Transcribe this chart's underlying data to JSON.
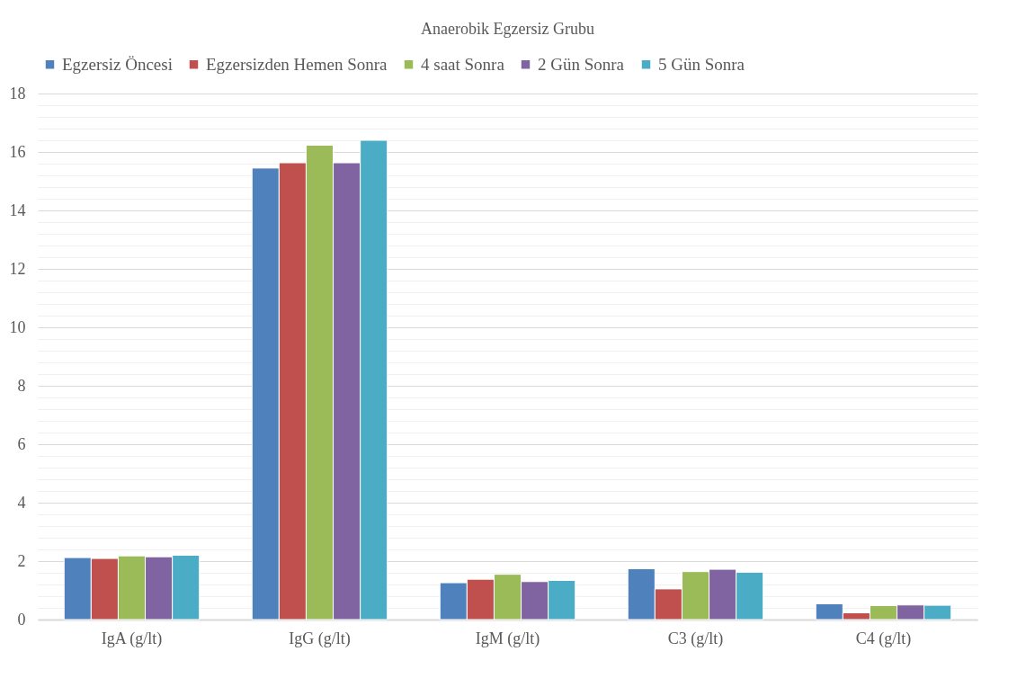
{
  "chart_data": {
    "type": "bar",
    "title": "Anaerobik Egzersiz Grubu",
    "categories": [
      "IgA (g/lt)",
      "IgG (g/lt)",
      "IgM (g/lt)",
      "C3 (g/lt)",
      "C4 (g/lt)"
    ],
    "series": [
      {
        "name": "Egzersiz Öncesi",
        "color": "#4f81bd",
        "values": [
          2.12,
          15.45,
          1.26,
          1.74,
          0.54
        ]
      },
      {
        "name": "Egzersizden Hemen Sonra",
        "color": "#c0504d",
        "values": [
          2.09,
          15.63,
          1.38,
          1.05,
          0.23
        ]
      },
      {
        "name": "4 saat Sonra",
        "color": "#9bbb59",
        "values": [
          2.18,
          16.23,
          1.55,
          1.64,
          0.48
        ]
      },
      {
        "name": "2 Gün Sonra",
        "color": "#8064a2",
        "values": [
          2.15,
          15.63,
          1.3,
          1.72,
          0.5
        ]
      },
      {
        "name": "5 Gün Sonra",
        "color": "#4bacc6",
        "values": [
          2.2,
          16.4,
          1.34,
          1.62,
          0.49
        ]
      }
    ],
    "ylim": [
      0,
      18
    ],
    "yticks": [
      0,
      {
        "value": 0.4,
        "label": null
      },
      {
        "value": 0.8,
        "label": null
      },
      {
        "value": 1.2,
        "label": null
      },
      {
        "value": 1.6,
        "label": null
      },
      2,
      {
        "value": 2.4,
        "label": null
      },
      {
        "value": 2.8,
        "label": null
      },
      {
        "value": 3.2,
        "label": null
      },
      {
        "value": 3.6,
        "label": null
      },
      4,
      {
        "value": 4.4,
        "label": null
      },
      {
        "value": 4.8,
        "label": null
      },
      {
        "value": 5.2,
        "label": null
      },
      {
        "value": 5.6,
        "label": null
      },
      6,
      {
        "value": 6.4,
        "label": null
      },
      {
        "value": 6.8,
        "label": null
      },
      {
        "value": 7.2,
        "label": null
      },
      {
        "value": 7.6,
        "label": null
      },
      8,
      {
        "value": 8.4,
        "label": null
      },
      {
        "value": 8.8,
        "label": null
      },
      {
        "value": 9.2,
        "label": null
      },
      {
        "value": 9.6,
        "label": null
      },
      10,
      {
        "value": 10.4,
        "label": null
      },
      {
        "value": 10.8,
        "label": null
      },
      {
        "value": 11.2,
        "label": null
      },
      {
        "value": 11.6,
        "label": null
      },
      12,
      {
        "value": 12.4,
        "label": null
      },
      {
        "value": 12.8,
        "label": null
      },
      {
        "value": 13.2,
        "label": null
      },
      {
        "value": 13.6,
        "label": null
      },
      14,
      {
        "value": 14.4,
        "label": null
      },
      {
        "value": 14.8,
        "label": null
      },
      {
        "value": 15.2,
        "label": null
      },
      {
        "value": 15.6,
        "label": null
      },
      16,
      {
        "value": 16.4,
        "label": null
      },
      {
        "value": 16.8,
        "label": null
      },
      {
        "value": 17.2,
        "label": null
      },
      {
        "value": 17.6,
        "label": null
      },
      18
    ],
    "grid": "y",
    "legend": "top"
  }
}
